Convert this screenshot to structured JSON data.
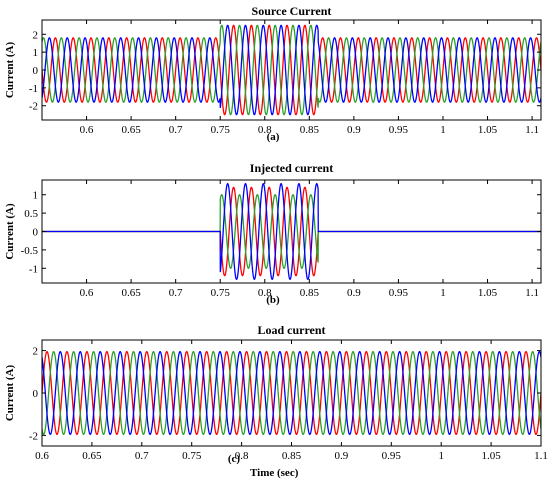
{
  "figure": {
    "panel_a_label": "(a)",
    "panel_b_label": "(b)",
    "panel_c_label": "(c)"
  },
  "colors": {
    "phase_a": "#ff0000",
    "phase_b": "#2ca02c",
    "phase_c": "#0000ff",
    "axis": "#000000"
  },
  "chart_data": [
    {
      "type": "line",
      "title": "Source Current",
      "ylabel": "Current (A)",
      "xlabel": "",
      "xlim": [
        0.55,
        1.11
      ],
      "ylim": [
        -2.8,
        2.8
      ],
      "xticks": [
        "0.6",
        "0.65",
        "0.7",
        "0.75",
        "0.8",
        "0.85",
        "0.9",
        "0.95",
        "1",
        "1.05",
        "1.1"
      ],
      "yticks": [
        "2",
        "1",
        "0",
        "-1",
        "-2"
      ],
      "frequency_hz": 50,
      "disturbance_window": [
        0.75,
        0.86
      ],
      "series": [
        {
          "color": "red",
          "phase_deg": 0,
          "amplitude": 1.8,
          "amplitude_during_disturbance": 2.5
        },
        {
          "color": "green",
          "phase_deg": -120,
          "amplitude": 1.8,
          "amplitude_during_disturbance": 2.5
        },
        {
          "color": "blue",
          "phase_deg": 120,
          "amplitude": 1.8,
          "amplitude_during_disturbance": 2.5
        }
      ]
    },
    {
      "type": "line",
      "title": "Injected current",
      "ylabel": "Current (A)",
      "xlabel": "",
      "xlim": [
        0.55,
        1.11
      ],
      "ylim": [
        -1.4,
        1.4
      ],
      "xticks": [
        "0.6",
        "0.65",
        "0.7",
        "0.75",
        "0.8",
        "0.85",
        "0.9",
        "0.95",
        "1",
        "1.05",
        "1.1"
      ],
      "yticks": [
        "1",
        "0.5",
        "0",
        "-0.5",
        "-1"
      ],
      "frequency_hz": 50,
      "injection_window": [
        0.75,
        0.86
      ],
      "series": [
        {
          "color": "red",
          "phase_deg": 0,
          "amplitude": 1.2
        },
        {
          "color": "green",
          "phase_deg": -120,
          "amplitude": 1.0
        },
        {
          "color": "blue",
          "phase_deg": 120,
          "amplitude": 1.3
        }
      ]
    },
    {
      "type": "line",
      "title": "Load current",
      "ylabel": "Current (A)",
      "xlabel": "Time (sec)",
      "xlim": [
        0.6,
        1.1
      ],
      "ylim": [
        -2.5,
        2.5
      ],
      "xticks": [
        "0.6",
        "0.65",
        "0.7",
        "0.75",
        "0.8",
        "0.85",
        "0.9",
        "0.95",
        "1",
        "1.05",
        "1.1"
      ],
      "yticks": [
        "2",
        "0",
        "-2"
      ],
      "frequency_hz": 50,
      "series": [
        {
          "color": "red",
          "phase_deg": 0,
          "amplitude": 1.95
        },
        {
          "color": "green",
          "phase_deg": -120,
          "amplitude": 1.95
        },
        {
          "color": "blue",
          "phase_deg": 120,
          "amplitude": 1.95
        }
      ]
    }
  ]
}
